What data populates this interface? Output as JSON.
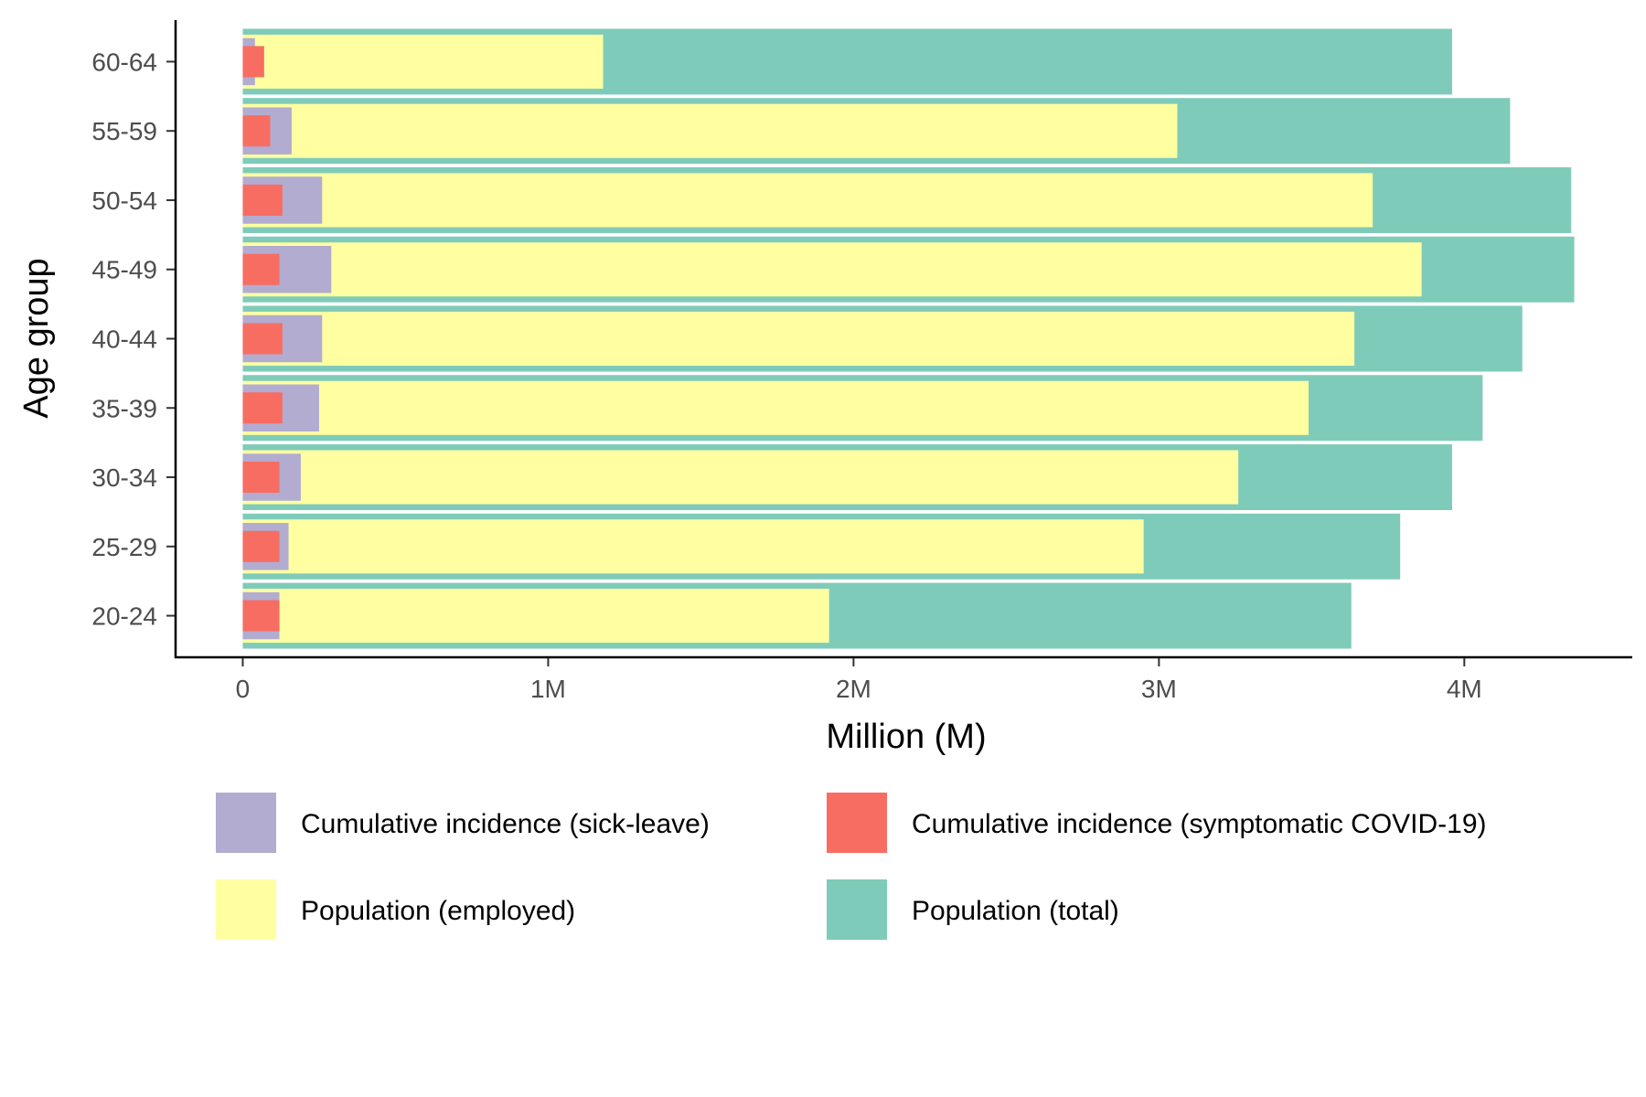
{
  "chart_data": {
    "type": "bar",
    "orientation": "horizontal",
    "title": "",
    "xlabel": "Million (M)",
    "ylabel": "Age group",
    "xlim": [
      -0.22,
      4.55
    ],
    "x_ticks": [
      0,
      1,
      2,
      3,
      4
    ],
    "x_tick_labels": [
      "0",
      "1M",
      "2M",
      "3M",
      "4M"
    ],
    "categories": [
      "20-24",
      "25-29",
      "30-34",
      "35-39",
      "40-44",
      "45-49",
      "50-54",
      "55-59",
      "60-64"
    ],
    "grid": false,
    "legend_position": "bottom",
    "series": [
      {
        "name": "Population (total)",
        "color": "#7fcbb9",
        "values": [
          3.63,
          3.79,
          3.96,
          4.06,
          4.19,
          4.36,
          4.35,
          4.15,
          3.96
        ]
      },
      {
        "name": "Population (employed)",
        "color": "#ffffa2",
        "values": [
          1.92,
          2.95,
          3.26,
          3.49,
          3.64,
          3.86,
          3.7,
          3.06,
          1.18
        ]
      },
      {
        "name": "Cumulative incidence (sick-leave)",
        "color": "#b2acd1",
        "values": [
          0.12,
          0.15,
          0.19,
          0.25,
          0.26,
          0.29,
          0.26,
          0.16,
          0.04
        ]
      },
      {
        "name": "Cumulative incidence (symptomatic COVID-19)",
        "color": "#f86d62",
        "values": [
          0.12,
          0.12,
          0.12,
          0.13,
          0.13,
          0.12,
          0.13,
          0.09,
          0.07
        ]
      }
    ],
    "legend_order": [
      "Cumulative incidence (sick-leave)",
      "Cumulative incidence (symptomatic COVID-19)",
      "Population (employed)",
      "Population (total)"
    ]
  }
}
